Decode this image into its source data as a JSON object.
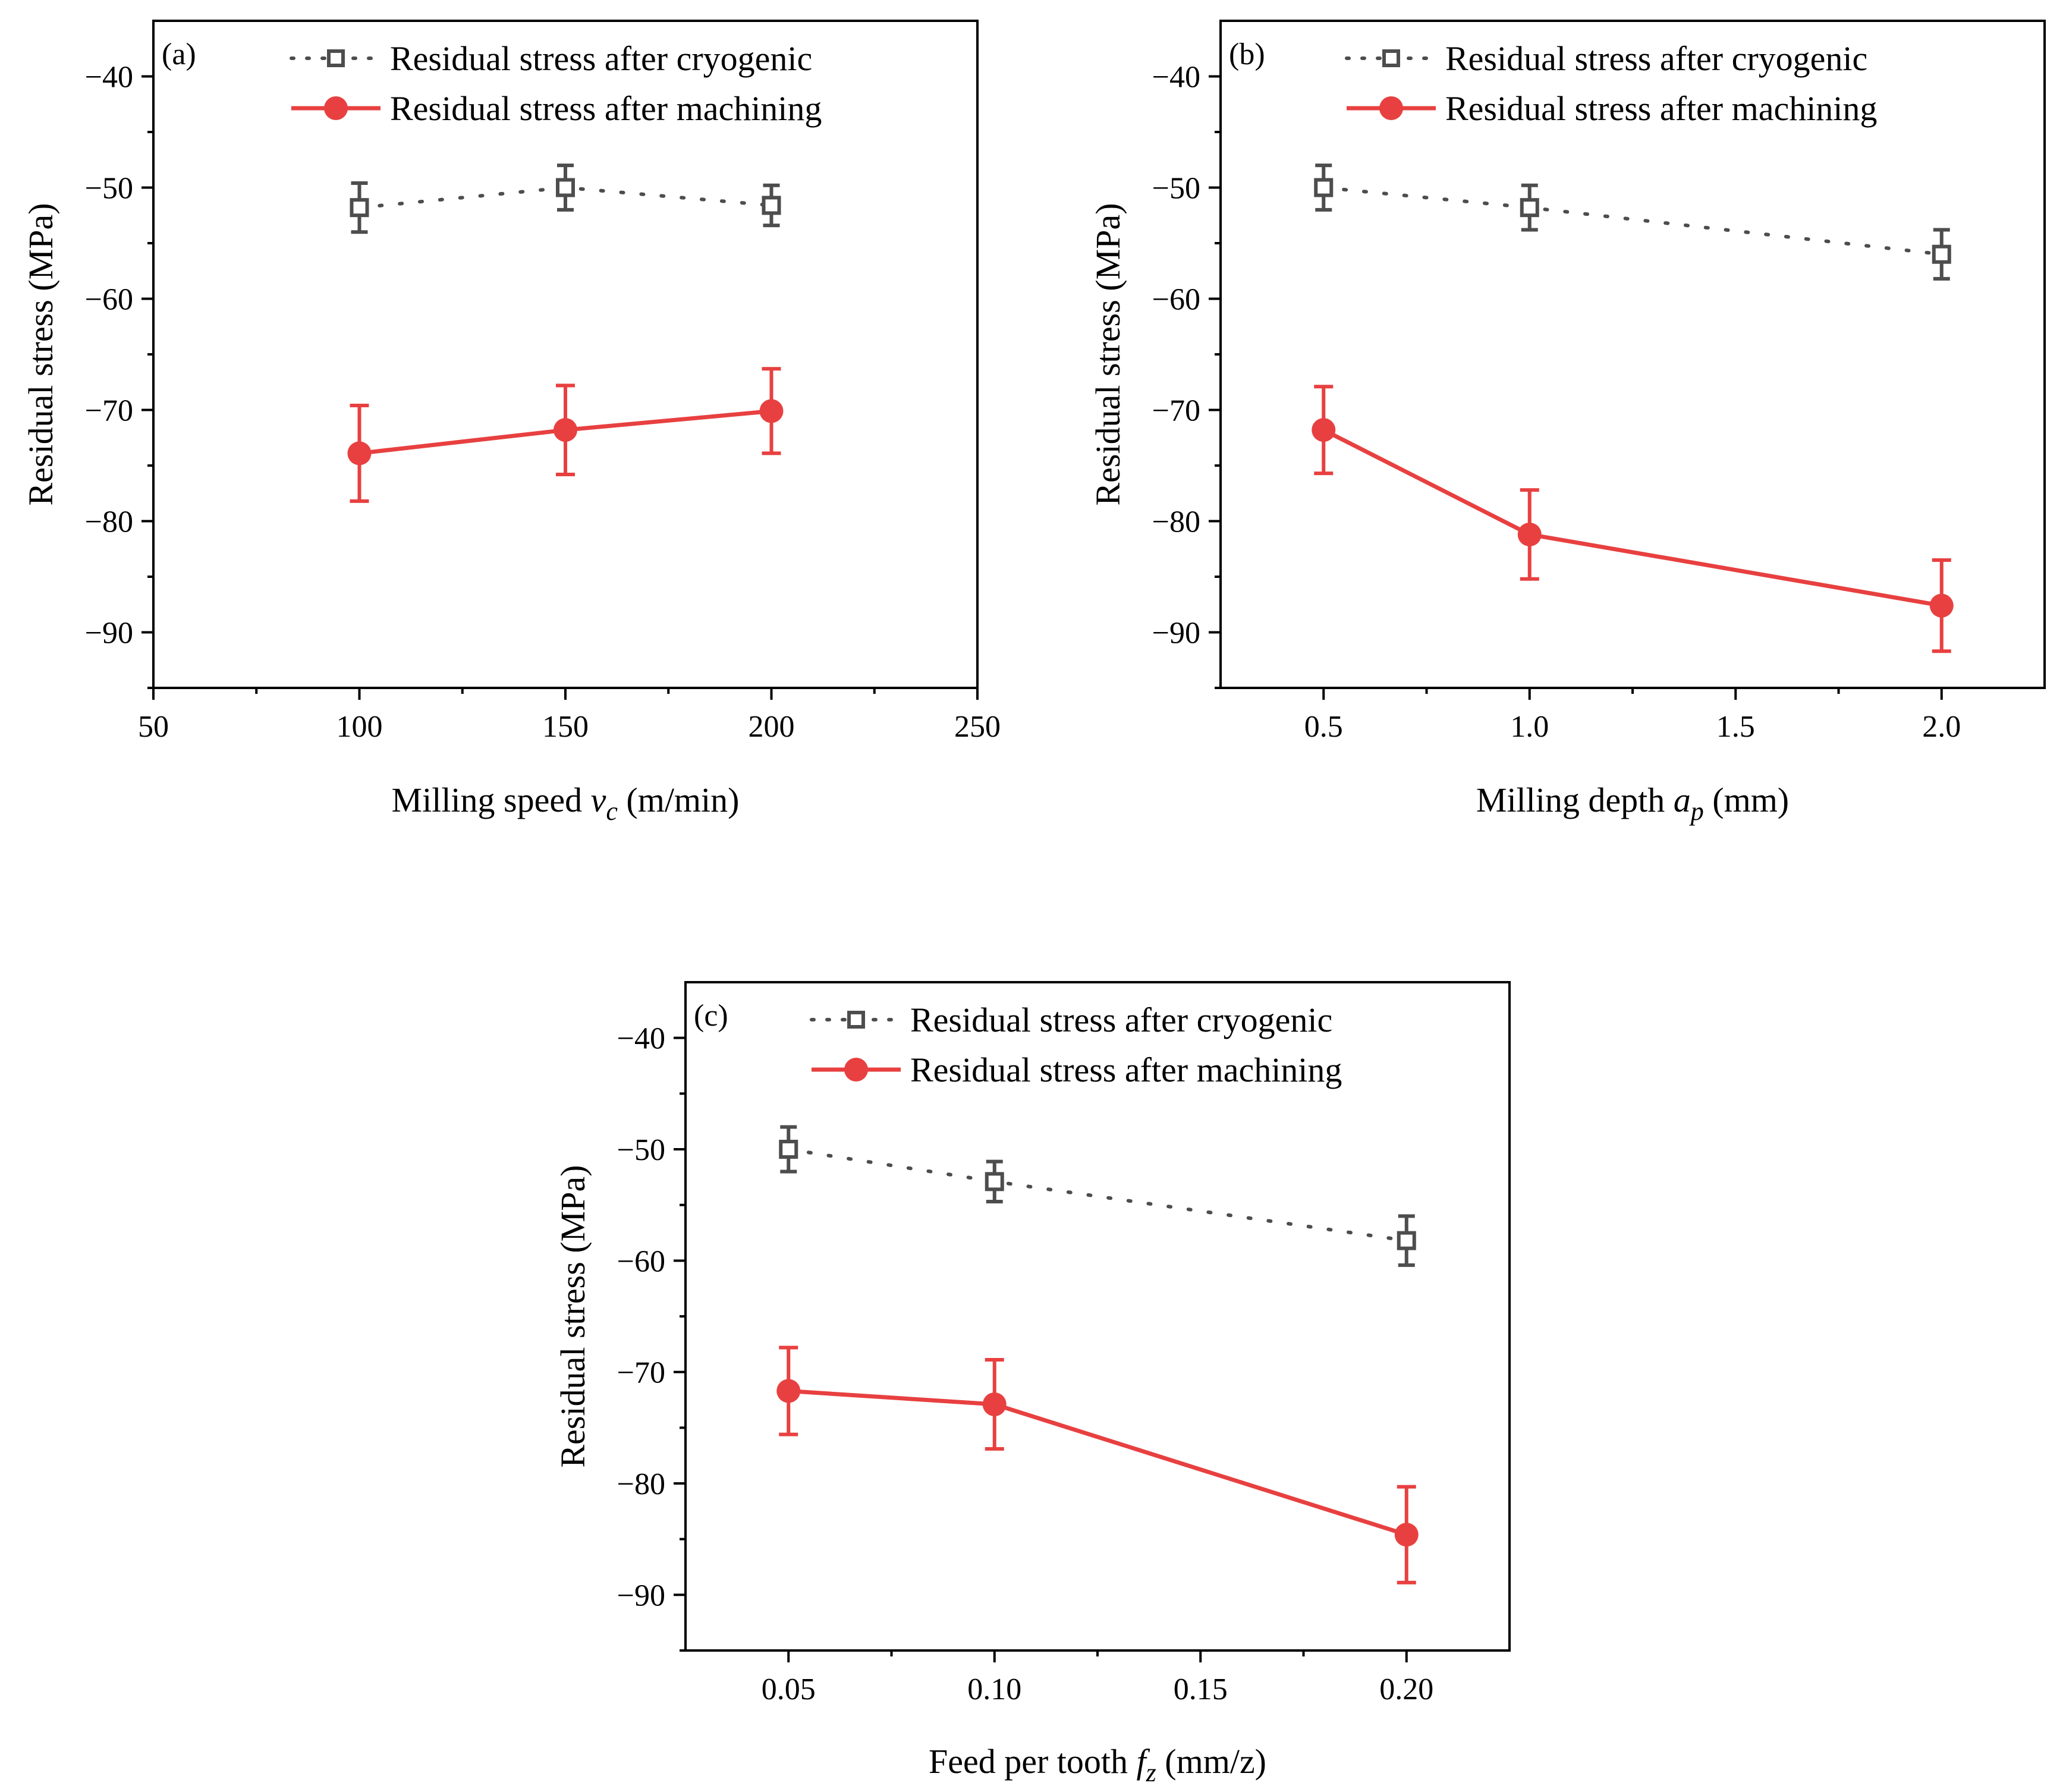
{
  "colors": {
    "cryogenic": "#4d4d4d",
    "machining": "#e84040",
    "axis": "#000000"
  },
  "chart_data": [
    {
      "type": "line",
      "panel_label": "(a)",
      "xlabel": "Milling speed",
      "xlabel_var": "v",
      "xlabel_sub": "c",
      "xlabel_unit": "(m/min)",
      "ylabel": "Residual stress (MPa)",
      "xlim": [
        50,
        250
      ],
      "ylim": [
        -95,
        -35
      ],
      "xticks": [
        50,
        100,
        150,
        200,
        250
      ],
      "xtick_labels": [
        "50",
        "100",
        "150",
        "200",
        "250"
      ],
      "yticks": [
        -40,
        -50,
        -60,
        -70,
        -80,
        -90
      ],
      "ytick_labels": [
        "−40",
        "−50",
        "−60",
        "−70",
        "−80",
        "−90"
      ],
      "x": [
        100,
        150,
        200
      ],
      "series": [
        {
          "name": "Residual stress after cryogenic",
          "style": "dotted-square",
          "values": [
            -51.8,
            -50.0,
            -51.6
          ],
          "err": [
            2.2,
            2.0,
            1.8
          ]
        },
        {
          "name": "Residual stress after machining",
          "style": "solid-circle",
          "values": [
            -73.9,
            -71.8,
            -70.1
          ],
          "err": [
            4.3,
            4.0,
            3.8
          ]
        }
      ]
    },
    {
      "type": "line",
      "panel_label": "(b)",
      "xlabel": "Milling depth",
      "xlabel_var": "a",
      "xlabel_sub": "p",
      "xlabel_unit": "(mm)",
      "ylabel": "Residual stress (MPa)",
      "xlim": [
        0.25,
        2.25
      ],
      "ylim": [
        -95,
        -35
      ],
      "xticks": [
        0.5,
        1.0,
        1.5,
        2.0
      ],
      "xtick_labels": [
        "0.5",
        "1.0",
        "1.5",
        "2.0"
      ],
      "yticks": [
        -40,
        -50,
        -60,
        -70,
        -80,
        -90
      ],
      "ytick_labels": [
        "−40",
        "−50",
        "−60",
        "−70",
        "−80",
        "−90"
      ],
      "x": [
        0.5,
        1.0,
        2.0
      ],
      "series": [
        {
          "name": "Residual stress after cryogenic",
          "style": "dotted-square",
          "values": [
            -50.0,
            -51.8,
            -56.0
          ],
          "err": [
            2.0,
            2.0,
            2.2
          ]
        },
        {
          "name": "Residual stress after machining",
          "style": "solid-circle",
          "values": [
            -71.8,
            -81.2,
            -87.6
          ],
          "err": [
            3.9,
            4.0,
            4.1
          ]
        }
      ]
    },
    {
      "type": "line",
      "panel_label": "(c)",
      "xlabel": "Feed per tooth",
      "xlabel_var": "f",
      "xlabel_sub": "z",
      "xlabel_unit": "(mm/z)",
      "ylabel": "Residual stress (MPa)",
      "xlim": [
        0.025,
        0.225
      ],
      "ylim": [
        -95,
        -35
      ],
      "xticks": [
        0.05,
        0.1,
        0.15,
        0.2
      ],
      "xtick_labels": [
        "0.05",
        "0.10",
        "0.15",
        "0.20"
      ],
      "yticks": [
        -40,
        -50,
        -60,
        -70,
        -80,
        -90
      ],
      "ytick_labels": [
        "−40",
        "−50",
        "−60",
        "−70",
        "−80",
        "−90"
      ],
      "x": [
        0.05,
        0.1,
        0.2
      ],
      "series": [
        {
          "name": "Residual stress after cryogenic",
          "style": "dotted-square",
          "values": [
            -50.0,
            -52.9,
            -58.2
          ],
          "err": [
            2.0,
            1.8,
            2.2
          ]
        },
        {
          "name": "Residual stress after machining",
          "style": "solid-circle",
          "values": [
            -71.7,
            -72.9,
            -84.6
          ],
          "err": [
            3.9,
            4.0,
            4.3
          ]
        }
      ]
    }
  ]
}
